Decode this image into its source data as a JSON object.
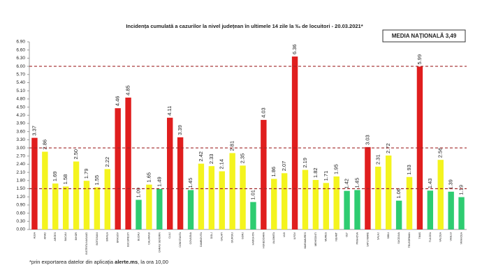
{
  "chart_data": {
    "type": "bar",
    "title": "Incidența cumulată a cazurilor la nivel județean în ultimele 14 zile la ‰ de locuitori - 20.03.2021*",
    "annotation": "MEDIA NAȚIONALĂ 3,49",
    "note_parts": [
      "*prin exportarea datelor din aplicația",
      "alerte.ms",
      ", la ora 10,00"
    ],
    "categories": [
      "ALBA",
      "ARAD",
      "ARGES",
      "BACAU",
      "BIHOR",
      "BISTRITA NASAUD",
      "BOTOSANI",
      "BRAILA",
      "BRASOV",
      "BUCURESTI",
      "BUZAU",
      "CALARASI",
      "CARAS SEVERIN",
      "CLUJ",
      "CONSTANTA",
      "COVASNA",
      "DAMBOVITA",
      "DOLJ",
      "GALATI",
      "GIURGIU",
      "GORJ",
      "HARGHITA",
      "HUNEDOARA",
      "IALOMITA",
      "IASI",
      "ILFOV",
      "MARAMURES",
      "MEHEDINTI",
      "MURES",
      "NEAMT",
      "OLT",
      "PRAHOVA",
      "SATU MARE",
      "SALAJ",
      "SIBIU",
      "SUCEAVA",
      "TELEORMAN",
      "TIMIS",
      "TULCEA",
      "VALCEA",
      "VASLUI",
      "VRANCEA"
    ],
    "values": [
      3.37,
      2.86,
      1.69,
      1.58,
      2.5,
      1.79,
      1.55,
      2.22,
      4.46,
      4.85,
      1.09,
      1.65,
      1.49,
      4.11,
      3.39,
      1.45,
      2.42,
      2.33,
      2.14,
      2.81,
      2.35,
      1.01,
      4.03,
      1.86,
      2.07,
      6.36,
      2.19,
      1.82,
      1.71,
      1.95,
      1.42,
      1.45,
      3.03,
      2.31,
      2.72,
      1.06,
      1.93,
      5.99,
      1.43,
      2.56,
      1.39,
      1.19
    ],
    "value_labels": [
      "3.37",
      "2.86",
      "1.69",
      "1.58",
      "2.50",
      "1.79",
      "1.55",
      "2.22",
      "4.46",
      "4.85",
      "1.09",
      "1.65",
      "1.49",
      "4.11",
      "3.39",
      "1.45",
      "2.42",
      "2.33",
      "2.14",
      "2.81",
      "2.35",
      "1.01",
      "4.03",
      "1.86",
      "2.07",
      "6.36",
      "2.19",
      "1.82",
      "1.71",
      "1.95",
      "1.42",
      "1.45",
      "3.03",
      "2.31",
      "2.72",
      "1.06",
      "1.93",
      "5.99",
      "1.43",
      "2.56",
      "1.39",
      "1.19"
    ],
    "colors": [
      "#e01e1e",
      "#f4f41e",
      "#f4f41e",
      "#f4f41e",
      "#f4f41e",
      "#f4f41e",
      "#f4f41e",
      "#f4f41e",
      "#e01e1e",
      "#e01e1e",
      "#2ecc71",
      "#f4f41e",
      "#2ecc71",
      "#e01e1e",
      "#e01e1e",
      "#2ecc71",
      "#f4f41e",
      "#f4f41e",
      "#f4f41e",
      "#f4f41e",
      "#f4f41e",
      "#2ecc71",
      "#e01e1e",
      "#f4f41e",
      "#f4f41e",
      "#e01e1e",
      "#f4f41e",
      "#f4f41e",
      "#f4f41e",
      "#f4f41e",
      "#2ecc71",
      "#2ecc71",
      "#e01e1e",
      "#f4f41e",
      "#f4f41e",
      "#2ecc71",
      "#f4f41e",
      "#e01e1e",
      "#2ecc71",
      "#f4f41e",
      "#2ecc71",
      "#2ecc71"
    ],
    "reference_lines": [
      6,
      3,
      1.5
    ],
    "reference_color": "#a0282a",
    "ylim": [
      0,
      6.9
    ],
    "yticks": [
      {
        "value": 0,
        "label": "0.00"
      },
      {
        "value": 0.3,
        "label": "0.30"
      },
      {
        "value": 0.6,
        "label": "0.60"
      },
      {
        "value": 0.9,
        "label": "0.90"
      },
      {
        "value": 1.2,
        "label": "1.20"
      },
      {
        "value": 1.5,
        "label": "1.50"
      },
      {
        "value": 1.8,
        "label": "1.80"
      },
      {
        "value": 2.1,
        "label": "2.10"
      },
      {
        "value": 2.4,
        "label": "2.40"
      },
      {
        "value": 2.7,
        "label": "2.70"
      },
      {
        "value": 3,
        "label": "3.00"
      },
      {
        "value": 3.3,
        "label": "3.30"
      },
      {
        "value": 3.6,
        "label": "3.60"
      },
      {
        "value": 3.9,
        "label": "3.90"
      },
      {
        "value": 4.2,
        "label": "4.20"
      },
      {
        "value": 4.5,
        "label": "4.50"
      },
      {
        "value": 4.8,
        "label": "4.80"
      },
      {
        "value": 5.1,
        "label": "5.10"
      },
      {
        "value": 5.4,
        "label": "5.40"
      },
      {
        "value": 5.7,
        "label": "5.70"
      },
      {
        "value": 6,
        "label": "6.00"
      },
      {
        "value": 6.3,
        "label": "6.30"
      },
      {
        "value": 6.6,
        "label": "6.60"
      },
      {
        "value": 6.9,
        "label": "6.90"
      }
    ]
  }
}
